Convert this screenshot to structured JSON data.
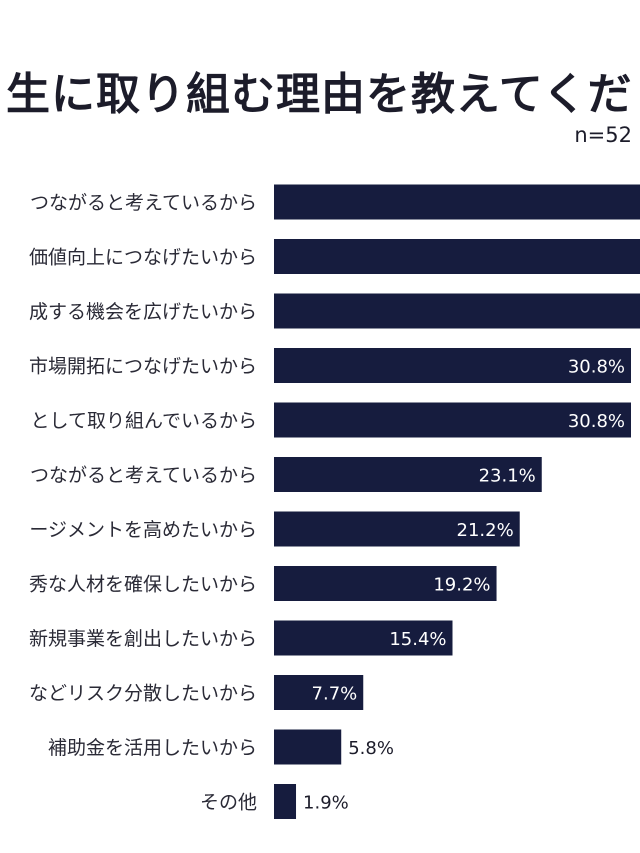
{
  "chart_data": {
    "type": "bar",
    "orientation": "horizontal",
    "title": "生に取り組む理由を教えてくだ",
    "sample_size": "n=52",
    "bar_color": "#161c3e",
    "categories": [
      "つながると考えているから",
      "価値向上につなげたいから",
      "成する機会を広げたいから",
      "市場開拓につなげたいから",
      "として取り組んでいるから",
      "つながると考えているから",
      "ージメントを高めたいから",
      "秀な人材を確保したいから",
      "新規事業を創出したいから",
      "などリスク分散したいから",
      "補助金を活用したいから",
      "その他"
    ],
    "values": [
      null,
      null,
      null,
      30.8,
      30.8,
      23.1,
      21.2,
      19.2,
      15.4,
      7.7,
      5.8,
      1.9
    ],
    "value_labels": [
      "",
      "",
      "",
      "30.8%",
      "30.8%",
      "23.1%",
      "21.2%",
      "19.2%",
      "15.4%",
      "7.7%",
      "5.8%",
      "1.9%"
    ],
    "xlim": [
      0,
      30.8
    ],
    "grid": false,
    "legend": "none"
  }
}
